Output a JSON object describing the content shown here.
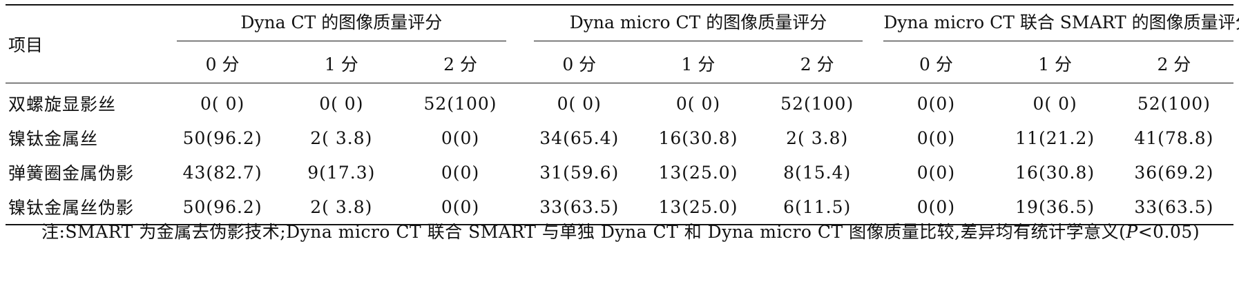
{
  "table": {
    "item_header": "项目",
    "groups": [
      {
        "title": "Dyna CT 的图像质量评分"
      },
      {
        "title": "Dyna micro CT 的图像质量评分"
      },
      {
        "title": "Dyna micro CT 联合 SMART 的图像质量评分"
      }
    ],
    "sub_headers": [
      "0 分",
      "1 分",
      "2 分",
      "0 分",
      "1 分",
      "2 分",
      "0 分",
      "1 分",
      "2 分"
    ],
    "rows": [
      {
        "label": "双螺旋显影丝",
        "cells": [
          "0( 0)",
          "0( 0)",
          "52(100)",
          "0( 0)",
          "0( 0)",
          "52(100)",
          "0(0)",
          "0( 0)",
          "52(100)"
        ]
      },
      {
        "label": "镍钛金属丝",
        "cells": [
          "50(96.2)",
          "2( 3.8)",
          "0(0)",
          "34(65.4)",
          "16(30.8)",
          "2( 3.8)",
          "0(0)",
          "11(21.2)",
          "41(78.8)"
        ]
      },
      {
        "label": "弹簧圈金属伪影",
        "cells": [
          "43(82.7)",
          "9(17.3)",
          "0(0)",
          "31(59.6)",
          "13(25.0)",
          "8(15.4)",
          "0(0)",
          "16(30.8)",
          "36(69.2)"
        ]
      },
      {
        "label": "镍钛金属丝伪影",
        "cells": [
          "50(96.2)",
          "2( 3.8)",
          "0(0)",
          "33(63.5)",
          "13(25.0)",
          "6(11.5)",
          "0(0)",
          "19(36.5)",
          "33(63.5)"
        ]
      }
    ]
  },
  "note": {
    "prefix": "注:SMART 为金属去伪影技术;Dyna micro CT 联合 SMART 与单独 Dyna CT 和 Dyna micro CT 图像质量比较,差异均有统计学意义(",
    "p": "P",
    "suffix": "<0.05)"
  }
}
